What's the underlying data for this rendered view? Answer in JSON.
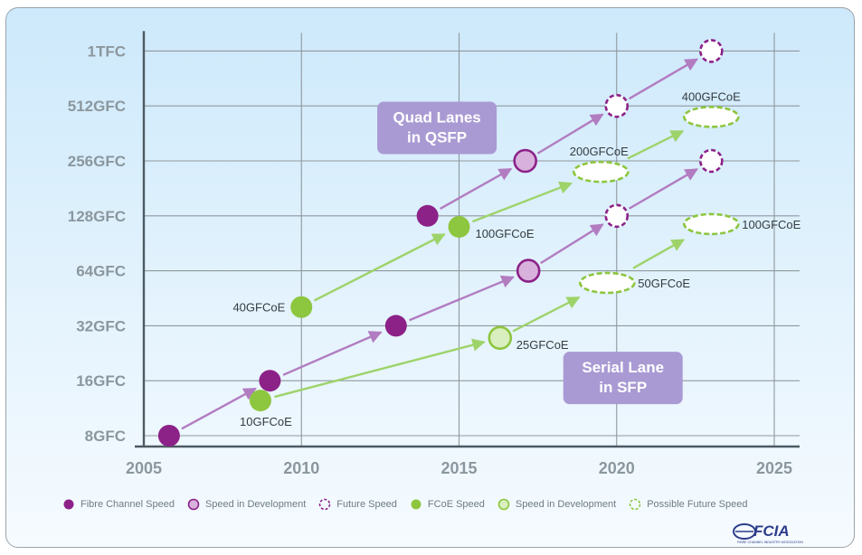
{
  "chart_data": {
    "type": "scatter",
    "title": "",
    "xlabel": "",
    "ylabel": "",
    "x_ticks": [
      "2005",
      "2010",
      "2015",
      "2020",
      "2025"
    ],
    "xlim": [
      2005,
      2025
    ],
    "y_ticks": [
      "8GFC",
      "16GFC",
      "32GFC",
      "64GFC",
      "128GFC",
      "256GFC",
      "512GFC",
      "1TFC"
    ],
    "y_scale": "log2 (categorical levels)",
    "grid": true,
    "colors": {
      "fc": "#8c2188",
      "fc_dev": "#d8b1dc",
      "fcoe": "#8dc63f",
      "fcoe_dev": "#d9efbf",
      "fc_arrow": "#b27cc1",
      "fcoe_arrow": "#9ed36a",
      "label_box": "#a99ad3",
      "axis_text": "#8b979e"
    },
    "points": [
      {
        "series": "fc",
        "status": "existing",
        "year": 2005.8,
        "level": "8GFC"
      },
      {
        "series": "fc",
        "status": "existing",
        "year": 2009.0,
        "level": "16GFC"
      },
      {
        "series": "fc",
        "status": "existing",
        "year": 2013.0,
        "level": "32GFC"
      },
      {
        "series": "fc",
        "status": "existing",
        "year": 2014.0,
        "level": "128GFC"
      },
      {
        "series": "fc",
        "status": "development",
        "year": 2017.1,
        "level": "256GFC"
      },
      {
        "series": "fc",
        "status": "development",
        "year": 2017.2,
        "level": "64GFC"
      },
      {
        "series": "fc",
        "status": "future",
        "year": 2020.0,
        "level": "512GFC"
      },
      {
        "series": "fc",
        "status": "future",
        "year": 2020.0,
        "level": "128GFC"
      },
      {
        "series": "fc",
        "status": "future",
        "year": 2023.0,
        "level": "1TFC"
      },
      {
        "series": "fc",
        "status": "future",
        "year": 2023.0,
        "level": "256GFC"
      },
      {
        "series": "fcoe",
        "status": "existing",
        "year": 2008.7,
        "level": "16GFC",
        "offset": -0.36,
        "label": "10GFCoE"
      },
      {
        "series": "fcoe",
        "status": "existing",
        "year": 2010.0,
        "level": "64GFC",
        "offset": -0.66,
        "label": "40GFCoE"
      },
      {
        "series": "fcoe",
        "status": "existing",
        "year": 2015.0,
        "level": "128GFC",
        "offset": -0.2,
        "label": "100GFCoE"
      },
      {
        "series": "fcoe",
        "status": "development",
        "year": 2016.3,
        "level": "32GFC",
        "offset": -0.22,
        "label": "25GFCoE"
      },
      {
        "series": "fcoe",
        "status": "future",
        "year": 2019.7,
        "level": "64GFC",
        "offset": -0.22,
        "label": "50GFCoE"
      },
      {
        "series": "fcoe",
        "status": "future",
        "year": 2019.5,
        "level": "256GFC",
        "offset": -0.2,
        "label": "200GFCoE"
      },
      {
        "series": "fcoe",
        "status": "future",
        "year": 2023.0,
        "level": "128GFC",
        "offset": -0.15,
        "label": "100GFCoE"
      },
      {
        "series": "fcoe",
        "status": "future",
        "year": 2023.0,
        "level": "512GFC",
        "offset": -0.2,
        "label": "400GFCoE"
      }
    ],
    "arrows": [
      {
        "series": "fc",
        "from": 0,
        "to": 1
      },
      {
        "series": "fc",
        "from": 1,
        "to": 2
      },
      {
        "series": "fc",
        "from": 2,
        "to": 5
      },
      {
        "series": "fc",
        "from": 5,
        "to": 7
      },
      {
        "series": "fc",
        "from": 7,
        "to": 9
      },
      {
        "series": "fc",
        "from": 3,
        "to": 4
      },
      {
        "series": "fc",
        "from": 4,
        "to": 6
      },
      {
        "series": "fc",
        "from": 6,
        "to": 8
      },
      {
        "series": "fcoe",
        "from": 10,
        "to": 13
      },
      {
        "series": "fcoe",
        "from": 13,
        "to": 14
      },
      {
        "series": "fcoe",
        "from": 14,
        "to": 16
      },
      {
        "series": "fcoe",
        "from": 11,
        "to": 12
      },
      {
        "series": "fcoe",
        "from": 12,
        "to": 15
      },
      {
        "series": "fcoe",
        "from": 15,
        "to": 17
      }
    ],
    "annotations": [
      {
        "text": [
          "Quad Lanes",
          "in QSFP"
        ],
        "year": 2014.3,
        "level_index": 5.6
      },
      {
        "text": [
          "Serial Lane",
          "in SFP"
        ],
        "year": 2020.2,
        "level_index": 1.05
      }
    ],
    "legend": {
      "placement": "bottom",
      "entries": [
        {
          "label": "Fibre Channel Speed",
          "series": "fc",
          "status": "existing"
        },
        {
          "label": "Speed in  Development",
          "series": "fc",
          "status": "development"
        },
        {
          "label": "Future Speed",
          "series": "fc",
          "status": "future"
        },
        {
          "label": "FCoE Speed",
          "series": "fcoe",
          "status": "existing"
        },
        {
          "label": "Speed in Development",
          "series": "fcoe",
          "status": "development"
        },
        {
          "label": "Possible Future Speed",
          "series": "fcoe",
          "status": "future"
        }
      ]
    }
  },
  "logo": {
    "text": "FCIA",
    "subtitle": "FIBRE CHANNEL INDUSTRY ASSOCIATION",
    "color": "#2d3d8a"
  }
}
